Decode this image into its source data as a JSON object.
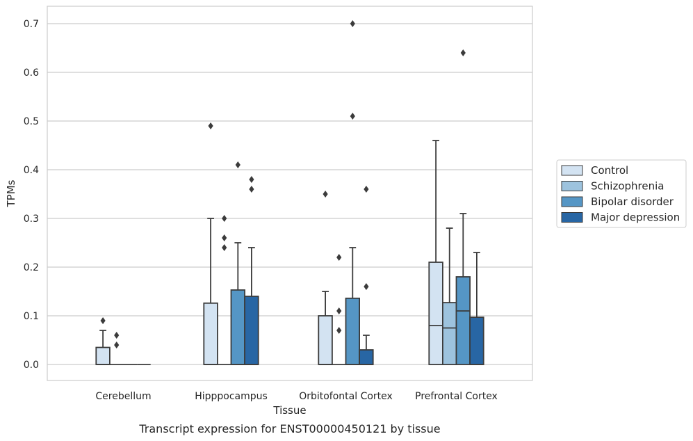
{
  "chart_data": {
    "type": "box",
    "xlabel": "Tissue",
    "ylabel": "TPMs",
    "caption": "Transcript expression for ENST00000450121 by tissue",
    "ylim": [
      -0.035,
      0.735
    ],
    "yticks": [
      "0.0",
      "0.1",
      "0.2",
      "0.3",
      "0.4",
      "0.5",
      "0.6",
      "0.7"
    ],
    "grid": true,
    "legend_position": "right-outside",
    "categories": [
      "Cerebellum",
      "Hipppocampus",
      "Orbitofontal Cortex",
      "Prefrontal Cortex"
    ],
    "series": [
      {
        "name": "Control",
        "color": "#d3e3f2",
        "boxes": [
          {
            "q1": 0.0,
            "median": 0.0,
            "q3": 0.035,
            "whisker_low": 0.0,
            "whisker_high": 0.07,
            "outliers": [
              0.09
            ]
          },
          {
            "q1": 0.0,
            "median": 0.0,
            "q3": 0.126,
            "whisker_low": 0.0,
            "whisker_high": 0.3,
            "outliers": [
              0.49
            ]
          },
          {
            "q1": 0.0,
            "median": 0.0,
            "q3": 0.1,
            "whisker_low": 0.0,
            "whisker_high": 0.15,
            "outliers": [
              0.35
            ]
          },
          {
            "q1": 0.0,
            "median": 0.08,
            "q3": 0.21,
            "whisker_low": 0.0,
            "whisker_high": 0.46,
            "outliers": []
          }
        ]
      },
      {
        "name": "Schizophrenia",
        "color": "#9dc3de",
        "boxes": [
          {
            "q1": 0.0,
            "median": 0.0,
            "q3": 0.0,
            "whisker_low": 0.0,
            "whisker_high": 0.0,
            "outliers": [
              0.04,
              0.06
            ]
          },
          {
            "q1": 0.0,
            "median": 0.0,
            "q3": 0.0,
            "whisker_low": 0.0,
            "whisker_high": 0.0,
            "outliers": [
              0.24,
              0.26,
              0.3
            ]
          },
          {
            "q1": 0.0,
            "median": 0.0,
            "q3": 0.0,
            "whisker_low": 0.0,
            "whisker_high": 0.0,
            "outliers": [
              0.07,
              0.11,
              0.22
            ]
          },
          {
            "q1": 0.0,
            "median": 0.075,
            "q3": 0.127,
            "whisker_low": 0.0,
            "whisker_high": 0.28,
            "outliers": []
          }
        ]
      },
      {
        "name": "Bipolar disorder",
        "color": "#5596c5",
        "boxes": [
          {
            "q1": 0.0,
            "median": 0.0,
            "q3": 0.0,
            "whisker_low": 0.0,
            "whisker_high": 0.0,
            "outliers": []
          },
          {
            "q1": 0.0,
            "median": 0.0,
            "q3": 0.153,
            "whisker_low": 0.0,
            "whisker_high": 0.25,
            "outliers": [
              0.41
            ]
          },
          {
            "q1": 0.0,
            "median": 0.0,
            "q3": 0.136,
            "whisker_low": 0.0,
            "whisker_high": 0.24,
            "outliers": [
              0.51,
              0.7
            ]
          },
          {
            "q1": 0.0,
            "median": 0.11,
            "q3": 0.18,
            "whisker_low": 0.0,
            "whisker_high": 0.31,
            "outliers": [
              0.64
            ]
          }
        ]
      },
      {
        "name": "Major depression",
        "color": "#2866a4",
        "boxes": [
          {
            "q1": 0.0,
            "median": 0.0,
            "q3": 0.0,
            "whisker_low": 0.0,
            "whisker_high": 0.0,
            "outliers": []
          },
          {
            "q1": 0.0,
            "median": 0.0,
            "q3": 0.14,
            "whisker_low": 0.0,
            "whisker_high": 0.24,
            "outliers": [
              0.36,
              0.38
            ]
          },
          {
            "q1": 0.0,
            "median": 0.0,
            "q3": 0.03,
            "whisker_low": 0.0,
            "whisker_high": 0.06,
            "outliers": [
              0.16,
              0.36
            ]
          },
          {
            "q1": 0.0,
            "median": 0.0,
            "q3": 0.097,
            "whisker_low": 0.0,
            "whisker_high": 0.23,
            "outliers": []
          }
        ]
      }
    ]
  }
}
